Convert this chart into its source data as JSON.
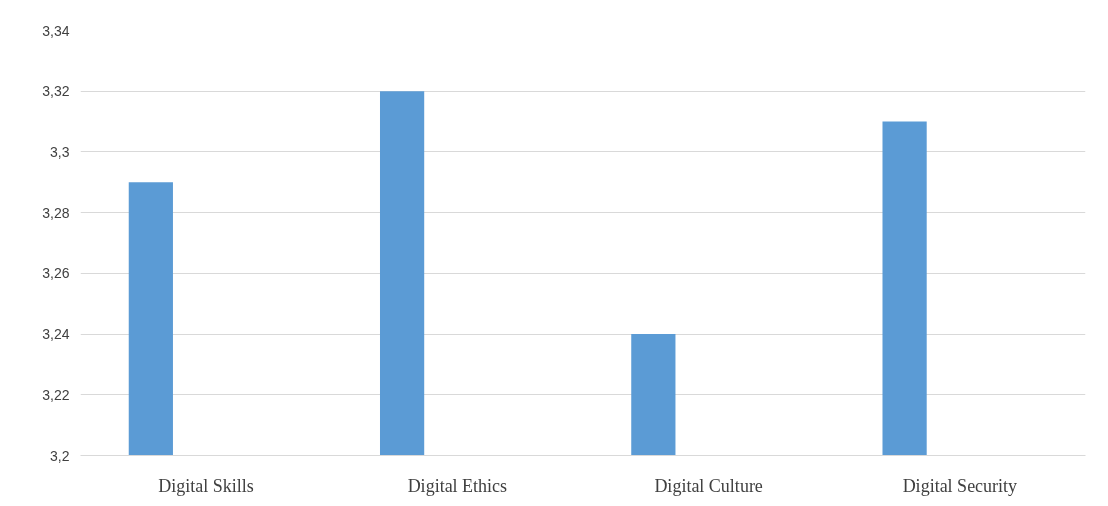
{
  "chart_data": {
    "type": "bar",
    "categories": [
      "Digital Skills",
      "Digital Ethics",
      "Digital Culture",
      "Digital Security"
    ],
    "values": [
      3.29,
      3.32,
      3.24,
      3.31
    ],
    "color": "#5b9bd5",
    "ylim": [
      3.2,
      3.34
    ],
    "yticks": [
      {
        "value": 3.2,
        "label": "3,2"
      },
      {
        "value": 3.22,
        "label": "3,22"
      },
      {
        "value": 3.24,
        "label": "3,24"
      },
      {
        "value": 3.26,
        "label": "3,26"
      },
      {
        "value": 3.28,
        "label": "3,28"
      },
      {
        "value": 3.3,
        "label": "3,3"
      },
      {
        "value": 3.32,
        "label": "3,32"
      },
      {
        "value": 3.34,
        "label": "3,34"
      }
    ],
    "grid": "y"
  }
}
